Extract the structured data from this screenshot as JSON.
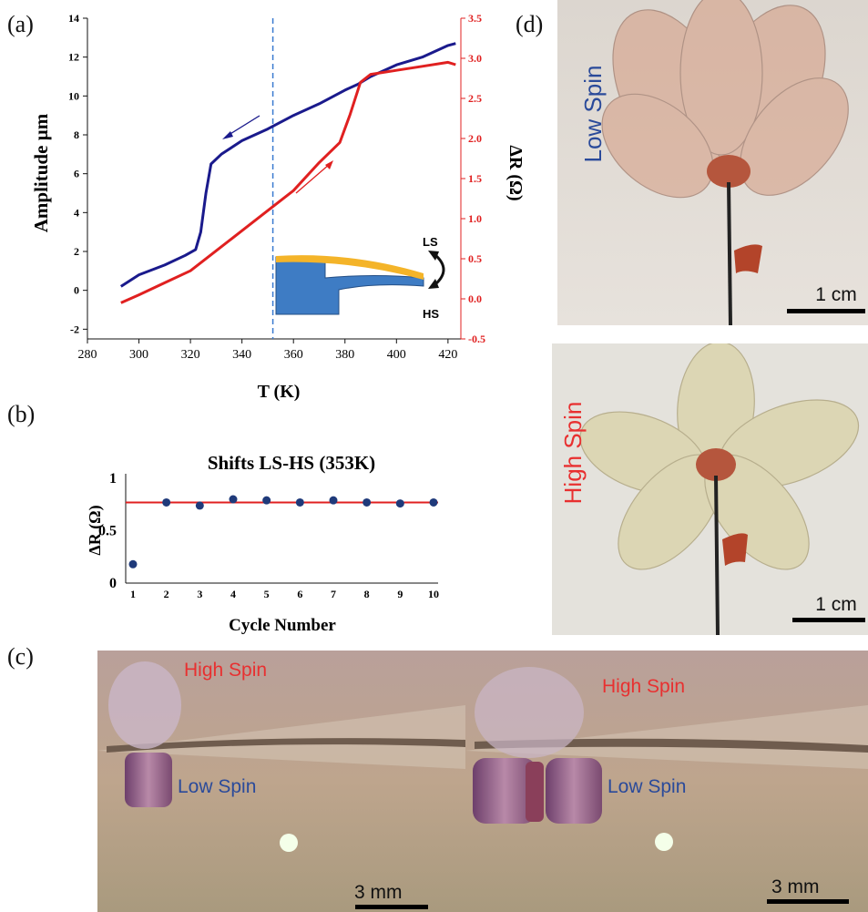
{
  "panels": {
    "a": "(a)",
    "b": "(b)",
    "c": "(c)",
    "d": "(d)"
  },
  "chart_data": [
    {
      "type": "line",
      "xlabel": "T (K)",
      "ylabel_left": "Amplitude µm",
      "ylabel_right": "ΔR (Ω)",
      "xlim": [
        280,
        425
      ],
      "ylim_left": [
        -2.5,
        14
      ],
      "ylim_right": [
        -0.5,
        3.5
      ],
      "x_ticks": [
        280,
        300,
        320,
        340,
        360,
        380,
        400,
        420
      ],
      "y_ticks_left": [
        -2,
        0,
        2,
        4,
        6,
        8,
        10,
        12,
        14
      ],
      "y_ticks_right": [
        -0.5,
        0.0,
        0.5,
        1.0,
        1.5,
        2.0,
        2.5,
        3.0,
        3.5
      ],
      "vline_x": 352,
      "series": [
        {
          "axis": "left",
          "color": "#1a1a8c",
          "points": [
            [
              293,
              0.2
            ],
            [
              300,
              0.8
            ],
            [
              310,
              1.3
            ],
            [
              318,
              1.8
            ],
            [
              322,
              2.1
            ],
            [
              324,
              3.0
            ],
            [
              326,
              5.0
            ],
            [
              328,
              6.5
            ],
            [
              332,
              7.0
            ],
            [
              340,
              7.7
            ],
            [
              350,
              8.3
            ],
            [
              360,
              9.0
            ],
            [
              370,
              9.6
            ],
            [
              380,
              10.3
            ],
            [
              385,
              10.6
            ],
            [
              390,
              11.0
            ],
            [
              400,
              11.6
            ],
            [
              410,
              12.0
            ],
            [
              420,
              12.6
            ],
            [
              423,
              12.7
            ]
          ]
        },
        {
          "axis": "right",
          "color": "#e02020",
          "points": [
            [
              293,
              -0.05
            ],
            [
              300,
              0.05
            ],
            [
              310,
              0.2
            ],
            [
              320,
              0.35
            ],
            [
              330,
              0.6
            ],
            [
              340,
              0.85
            ],
            [
              350,
              1.1
            ],
            [
              360,
              1.35
            ],
            [
              370,
              1.7
            ],
            [
              378,
              1.95
            ],
            [
              382,
              2.3
            ],
            [
              386,
              2.7
            ],
            [
              390,
              2.8
            ],
            [
              400,
              2.85
            ],
            [
              410,
              2.9
            ],
            [
              420,
              2.95
            ],
            [
              423,
              2.92
            ]
          ]
        }
      ],
      "inset": {
        "top_label": "LS",
        "bottom_label": "HS"
      }
    },
    {
      "type": "scatter",
      "title": "Shifts LS-HS (353K)",
      "xlabel": "Cycle Number",
      "ylabel": "ΔR (Ω)",
      "x": [
        1,
        2,
        3,
        4,
        5,
        6,
        7,
        8,
        9,
        10
      ],
      "y": [
        0.18,
        0.77,
        0.74,
        0.8,
        0.79,
        0.77,
        0.79,
        0.77,
        0.76,
        0.77
      ],
      "ylim": [
        0,
        1
      ],
      "y_ticks": [
        0,
        0.5,
        1
      ],
      "hline_y": 0.77,
      "marker_color": "#1f3a7a",
      "hline_color": "#e02020"
    }
  ],
  "photos": {
    "c_left": {
      "top": "High Spin",
      "bottom": "Low Spin",
      "scale": "3 mm"
    },
    "c_right": {
      "top": "High Spin",
      "bottom": "Low Spin",
      "scale": "3 mm"
    },
    "d_top": {
      "label": "Low Spin",
      "scale": "1 cm"
    },
    "d_bottom": {
      "label": "High Spin",
      "scale": "1 cm"
    }
  },
  "colors": {
    "low_spin_text": "#2a4a9a",
    "high_spin_text": "#e83030",
    "blue_series": "#1a1a8c",
    "red_series": "#e02020"
  }
}
